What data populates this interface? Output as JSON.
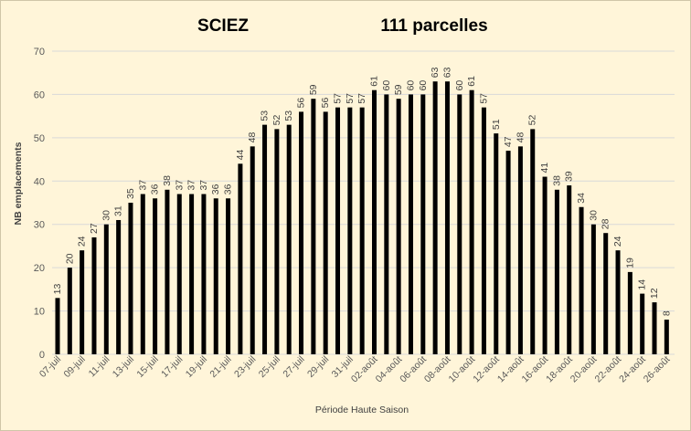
{
  "chart_data": {
    "type": "bar",
    "title": "SCIEZ",
    "subtitle": "111 parcelles",
    "xlabel": "Période Haute Saison",
    "ylabel": "NB emplacements",
    "ylim": [
      0,
      70
    ],
    "yticks": [
      0,
      10,
      20,
      30,
      40,
      50,
      60,
      70
    ],
    "grid": true,
    "legend": "none",
    "bar_color": "#000000",
    "grid_color": "#d9d9d9",
    "background_color": "#fff5d9",
    "categories": [
      "07-juil",
      "08-juil",
      "09-juil",
      "10-juil",
      "11-juil",
      "12-juil",
      "13-juil",
      "14-juil",
      "15-juil",
      "16-juil",
      "17-juil",
      "18-juil",
      "19-juil",
      "20-juil",
      "21-juil",
      "22-juil",
      "23-juil",
      "24-juil",
      "25-juil",
      "26-juil",
      "27-juil",
      "28-juil",
      "29-juil",
      "30-juil",
      "31-juil",
      "01-août",
      "02-août",
      "03-août",
      "04-août",
      "05-août",
      "06-août",
      "07-août",
      "08-août",
      "09-août",
      "10-août",
      "11-août",
      "12-août",
      "13-août",
      "14-août",
      "15-août",
      "16-août",
      "17-août",
      "18-août",
      "19-août",
      "20-août",
      "21-août",
      "22-août",
      "23-août",
      "24-août",
      "25-août",
      "26-août"
    ],
    "tick_labels": [
      "07-juil",
      "09-juil",
      "11-juil",
      "13-juil",
      "15-juil",
      "17-juil",
      "19-juil",
      "21-juil",
      "23-juil",
      "25-juil",
      "27-juil",
      "29-juil",
      "31-juil",
      "02-août",
      "04-août",
      "06-août",
      "08-août",
      "10-août",
      "12-août",
      "14-août",
      "16-août",
      "18-août",
      "20-août",
      "22-août",
      "24-août",
      "26-août"
    ],
    "values": [
      13,
      20,
      24,
      27,
      30,
      31,
      35,
      37,
      36,
      38,
      37,
      37,
      37,
      36,
      36,
      44,
      48,
      53,
      52,
      53,
      56,
      59,
      56,
      57,
      57,
      57,
      61,
      60,
      59,
      60,
      60,
      63,
      63,
      60,
      61,
      57,
      51,
      47,
      48,
      52,
      41,
      38,
      39,
      34,
      30,
      28,
      24,
      19,
      14,
      12,
      8
    ]
  }
}
